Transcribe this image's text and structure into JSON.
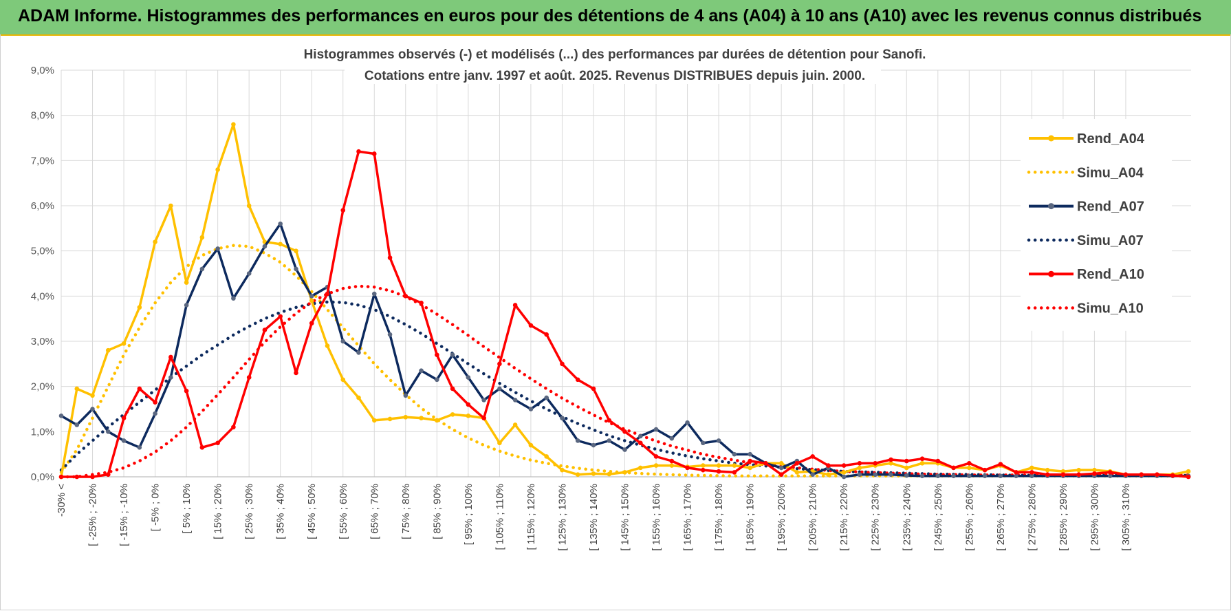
{
  "banner": {
    "title": "ADAM Informe. Histogrammes des performances en euros pour des détentions de 4 ans (A04) à 10 ans (A10) avec les revenus connus distribués"
  },
  "colors": {
    "banner_bg": "#7ec97a",
    "a04": "#ffc000",
    "a07": "#0d2a5e",
    "a10": "#ff0000",
    "grid": "#d9d9d9"
  },
  "chart_data": {
    "type": "line",
    "title": "Histogrammes observés (-) et modélisés (...) des performances par durées de détention pour Sanofi.",
    "subtitle": "Cotations entre janv. 1997 et août. 2025. Revenus DISTRIBUES depuis juin. 2000.",
    "ylim": [
      0,
      9
    ],
    "y_ticks": [
      "0,0%",
      "1,0%",
      "2,0%",
      "3,0%",
      "4,0%",
      "5,0%",
      "6,0%",
      "7,0%",
      "8,0%",
      "9,0%"
    ],
    "grid": true,
    "legend_position": "top-right",
    "tick_labels": [
      "-30% <",
      "[ -25% ; -20%",
      "[ -15% ; -10%",
      "[ -5% ; 0%",
      "[ 5% ; 10%",
      "[ 15% ; 20%",
      "[ 25% ; 30%",
      "[ 35% ; 40%",
      "[ 45% ; 50%",
      "[ 55% ; 60%",
      "[ 65% ; 70%",
      "[ 75% ; 80%",
      "[ 85% ; 90%",
      "[ 95% ; 100%",
      "[ 105% ; 110%",
      "[ 115% ; 120%",
      "[ 125% ; 130%",
      "[ 135% ; 140%",
      "[ 145% ; 150%",
      "[ 155% ; 160%",
      "[ 165% ; 170%",
      "[ 175% ; 180%",
      "[ 185% ; 190%",
      "[ 195% ; 200%",
      "[ 205% ; 210%",
      "[ 215% ; 220%",
      "[ 225% ; 230%",
      "[ 235% ; 240%",
      "[ 245% ; 250%",
      "[ 255% ; 260%",
      "[ 265% ; 270%",
      "[ 275% ; 280%",
      "[ 285% ; 290%",
      "[ 295% ; 300%",
      "[ 305% ; 310%"
    ],
    "series": [
      {
        "name": "Rend_A04",
        "style": "solid",
        "color": "#ffc000",
        "values": [
          0.0,
          1.95,
          1.8,
          2.8,
          2.95,
          3.75,
          5.2,
          6.0,
          4.3,
          5.3,
          6.8,
          7.8,
          6.0,
          5.2,
          5.15,
          5.0,
          3.9,
          2.9,
          2.15,
          1.75,
          1.25,
          1.28,
          1.32,
          1.3,
          1.25,
          1.38,
          1.35,
          1.3,
          0.75,
          1.15,
          0.7,
          0.45,
          0.15,
          0.05,
          0.07,
          0.06,
          0.1,
          0.2,
          0.25,
          0.25,
          0.22,
          0.25,
          0.25,
          0.25,
          0.2,
          0.3,
          0.3,
          0.1,
          0.12,
          0.05,
          0.1,
          0.2,
          0.25,
          0.3,
          0.2,
          0.3,
          0.3,
          0.2,
          0.2,
          0.15,
          0.25,
          0.1,
          0.2,
          0.15,
          0.12,
          0.15,
          0.15,
          0.12,
          0.05,
          0.05,
          0.05,
          0.05,
          0.12
        ]
      },
      {
        "name": "Simu_A04",
        "style": "dotted",
        "color": "#ffc000",
        "values": [
          0.1,
          0.6,
          1.3,
          2.0,
          2.7,
          3.3,
          3.85,
          4.3,
          4.65,
          4.9,
          5.05,
          5.12,
          5.1,
          4.95,
          4.75,
          4.45,
          4.1,
          3.7,
          3.3,
          2.9,
          2.5,
          2.15,
          1.82,
          1.52,
          1.27,
          1.05,
          0.86,
          0.7,
          0.57,
          0.46,
          0.37,
          0.3,
          0.24,
          0.19,
          0.15,
          0.12,
          0.095,
          0.075,
          0.06,
          0.047,
          0.037,
          0.03,
          0.024,
          0.02,
          0.02,
          0.02,
          0.02,
          0.02,
          0.02,
          0.02,
          0.02,
          0.02,
          0.02,
          0.02,
          0.02,
          0.02,
          0.02,
          0.02,
          0.02,
          0.02,
          0.02,
          0.02,
          0.02,
          0.02,
          0.02,
          0.02,
          0.02,
          0.02,
          0.02,
          0.02,
          0.02,
          0.02,
          0.02
        ]
      },
      {
        "name": "Rend_A07",
        "style": "solid",
        "color": "#0d2a5e",
        "values": [
          1.35,
          1.15,
          1.5,
          1.0,
          0.8,
          0.65,
          1.4,
          2.2,
          3.8,
          4.6,
          5.05,
          3.95,
          4.5,
          5.1,
          5.6,
          4.6,
          4.0,
          4.2,
          3.0,
          2.75,
          4.05,
          3.15,
          1.8,
          2.35,
          2.15,
          2.7,
          2.2,
          1.7,
          1.95,
          1.7,
          1.5,
          1.75,
          1.3,
          0.8,
          0.7,
          0.8,
          0.6,
          0.9,
          1.05,
          0.85,
          1.2,
          0.75,
          0.8,
          0.5,
          0.5,
          0.3,
          0.2,
          0.35,
          0.05,
          0.2,
          0.0,
          0.05,
          0.05,
          0.05,
          0.03,
          0.02,
          0.02,
          0.02,
          0.02,
          0.02,
          0.02,
          0.02,
          0.02,
          0.02,
          0.02,
          0.02,
          0.02,
          0.02,
          0.02,
          0.02,
          0.02,
          0.02,
          0.02
        ]
      },
      {
        "name": "Simu_A07",
        "style": "dotted",
        "color": "#0d2a5e",
        "values": [
          0.15,
          0.5,
          0.8,
          1.1,
          1.38,
          1.65,
          1.92,
          2.2,
          2.45,
          2.7,
          2.92,
          3.14,
          3.33,
          3.5,
          3.64,
          3.75,
          3.83,
          3.87,
          3.86,
          3.8,
          3.7,
          3.55,
          3.37,
          3.17,
          2.95,
          2.73,
          2.5,
          2.28,
          2.07,
          1.87,
          1.68,
          1.5,
          1.33,
          1.18,
          1.04,
          0.91,
          0.8,
          0.7,
          0.61,
          0.53,
          0.46,
          0.4,
          0.35,
          0.3,
          0.27,
          0.24,
          0.21,
          0.18,
          0.16,
          0.14,
          0.12,
          0.11,
          0.1,
          0.09,
          0.08,
          0.07,
          0.06,
          0.055,
          0.05,
          0.045,
          0.04,
          0.035,
          0.03,
          0.03,
          0.03,
          0.03,
          0.03,
          0.03,
          0.03,
          0.03,
          0.03,
          0.03,
          0.03
        ]
      },
      {
        "name": "Rend_A10",
        "style": "solid",
        "color": "#ff0000",
        "values": [
          0.0,
          0.0,
          0.0,
          0.05,
          1.3,
          1.95,
          1.65,
          2.65,
          1.9,
          0.65,
          0.75,
          1.1,
          2.2,
          3.25,
          3.55,
          2.3,
          3.4,
          4.05,
          5.9,
          7.2,
          7.15,
          4.85,
          4.0,
          3.85,
          2.7,
          1.95,
          1.6,
          1.3,
          2.5,
          3.8,
          3.35,
          3.15,
          2.5,
          2.15,
          1.95,
          1.25,
          1.0,
          0.75,
          0.45,
          0.35,
          0.2,
          0.15,
          0.12,
          0.1,
          0.35,
          0.3,
          0.05,
          0.3,
          0.45,
          0.25,
          0.25,
          0.3,
          0.3,
          0.38,
          0.35,
          0.4,
          0.35,
          0.2,
          0.3,
          0.15,
          0.28,
          0.1,
          0.1,
          0.05,
          0.05,
          0.05,
          0.07,
          0.1,
          0.05,
          0.05,
          0.05,
          0.03,
          0.0
        ]
      },
      {
        "name": "Simu_A10",
        "style": "dotted",
        "color": "#ff0000",
        "values": [
          0.0,
          0.0,
          0.05,
          0.1,
          0.2,
          0.35,
          0.55,
          0.8,
          1.1,
          1.45,
          1.82,
          2.2,
          2.6,
          2.98,
          3.32,
          3.62,
          3.87,
          4.05,
          4.17,
          4.22,
          4.2,
          4.12,
          3.99,
          3.81,
          3.6,
          3.37,
          3.13,
          2.88,
          2.64,
          2.4,
          2.17,
          1.95,
          1.74,
          1.55,
          1.37,
          1.2,
          1.05,
          0.92,
          0.79,
          0.68,
          0.59,
          0.5,
          0.43,
          0.37,
          0.31,
          0.27,
          0.23,
          0.2,
          0.17,
          0.14,
          0.12,
          0.11,
          0.09,
          0.08,
          0.07,
          0.06,
          0.05,
          0.05,
          0.04,
          0.04,
          0.04,
          0.04,
          0.04,
          0.04,
          0.04,
          0.04,
          0.04,
          0.04,
          0.04,
          0.04,
          0.04,
          0.04,
          0.04
        ]
      }
    ]
  }
}
